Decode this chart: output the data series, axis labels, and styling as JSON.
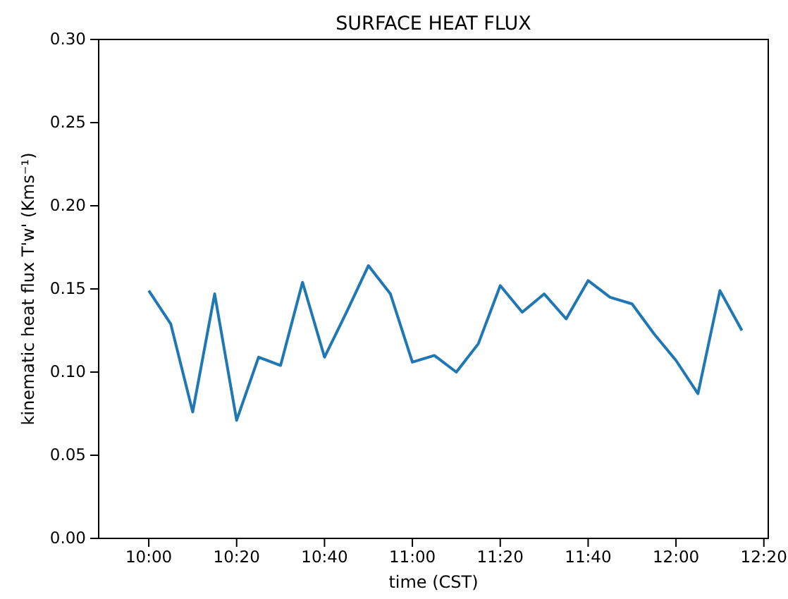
{
  "chart_data": {
    "type": "line",
    "title": "SURFACE HEAT FLUX",
    "xlabel": "time (CST)",
    "ylabel": "kinematic heat flux T'w' (Kms⁻¹)",
    "x": [
      10,
      10.0833,
      10.1667,
      10.25,
      10.3333,
      10.4167,
      10.5,
      10.5833,
      10.6667,
      10.75,
      10.8333,
      10.9167,
      11,
      11.0833,
      11.1667,
      11.25,
      11.3333,
      11.4167,
      11.5,
      11.5833,
      11.6667,
      11.75,
      11.8333,
      11.9167,
      12,
      12.0833,
      12.1667,
      12.25
    ],
    "series": [
      {
        "color": "#1f77b4",
        "values": [
          0.149,
          0.129,
          0.076,
          0.147,
          0.071,
          0.109,
          0.104,
          0.154,
          0.109,
          0.136,
          0.164,
          0.147,
          0.106,
          0.11,
          0.1,
          0.117,
          0.152,
          0.136,
          0.147,
          0.132,
          0.155,
          0.145,
          0.141,
          0.123,
          0.107,
          0.087,
          0.149,
          0.125
        ]
      }
    ],
    "xlim": [
      9.81,
      12.35
    ],
    "xticks": [
      {
        "value": 10,
        "label": "10:00"
      },
      {
        "value": 10.3333,
        "label": "10:20"
      },
      {
        "value": 10.6667,
        "label": "10:40"
      },
      {
        "value": 11,
        "label": "11:00"
      },
      {
        "value": 11.3333,
        "label": "11:20"
      },
      {
        "value": 11.6667,
        "label": "11:40"
      },
      {
        "value": 12,
        "label": "12:00"
      },
      {
        "value": 12.3333,
        "label": "12:20"
      }
    ],
    "ylim": [
      0,
      0.3
    ],
    "yticks": [
      {
        "value": 0,
        "label": "0.00"
      },
      {
        "value": 0.05,
        "label": "0.05"
      },
      {
        "value": 0.1,
        "label": "0.10"
      },
      {
        "value": 0.15,
        "label": "0.15"
      },
      {
        "value": 0.2,
        "label": "0.20"
      },
      {
        "value": 0.25,
        "label": "0.25"
      },
      {
        "value": 0.3,
        "label": "0.30"
      }
    ],
    "grid": false,
    "line_style": "solid",
    "marker": "none"
  }
}
